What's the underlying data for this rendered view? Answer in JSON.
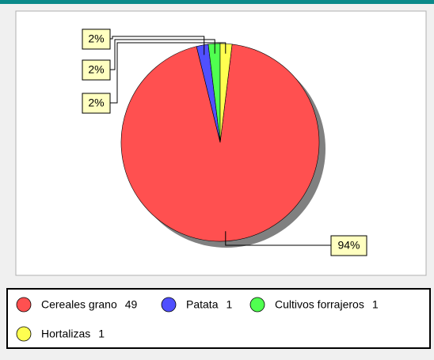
{
  "chart_data": {
    "type": "pie",
    "categories": [
      "Cereales grano",
      "Patata",
      "Cultivos forrajeros",
      "Hortalizas"
    ],
    "values": [
      49,
      1,
      1,
      1
    ],
    "value_labels": [
      "94%",
      "2%",
      "2%",
      "2%"
    ],
    "colors": [
      "#ff5050",
      "#5050ff",
      "#50ff50",
      "#ffff50"
    ],
    "legend": "bottom"
  }
}
